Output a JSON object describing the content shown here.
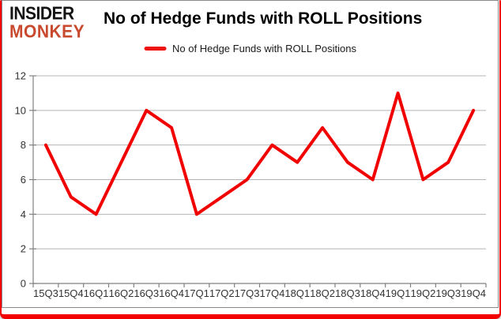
{
  "logo": {
    "line1": "INSIDER",
    "line2": "MONKEY",
    "line2_color": "#c8492e"
  },
  "header": {
    "title": "No of Hedge Funds with ROLL Positions"
  },
  "chart_data": {
    "type": "line",
    "title": "No of Hedge Funds with ROLL Positions",
    "legend_label": "No of Hedge Funds with ROLL Positions",
    "legend_position": "top-center",
    "categories": [
      "15Q3",
      "15Q4",
      "16Q1",
      "16Q2",
      "16Q3",
      "16Q4",
      "17Q1",
      "17Q2",
      "17Q3",
      "17Q4",
      "18Q1",
      "18Q2",
      "18Q3",
      "18Q4",
      "19Q1",
      "19Q2",
      "19Q3",
      "19Q4"
    ],
    "series": [
      {
        "name": "No of Hedge Funds with ROLL Positions",
        "color": "#f00000",
        "values": [
          8,
          5,
          4,
          7,
          10,
          9,
          4,
          5,
          6,
          8,
          7,
          9,
          7,
          6,
          11,
          6,
          7,
          10
        ]
      }
    ],
    "ylim": [
      0,
      12
    ],
    "ytick_step": 2,
    "yticks": [
      0,
      2,
      4,
      6,
      8,
      10,
      12
    ],
    "grid": "horizontal",
    "grid_color": "#b4b4b4",
    "axis_color": "#808080",
    "tick_label_color": "#333333",
    "line_width": 4
  },
  "frame": {
    "border_color": "#f20000"
  }
}
